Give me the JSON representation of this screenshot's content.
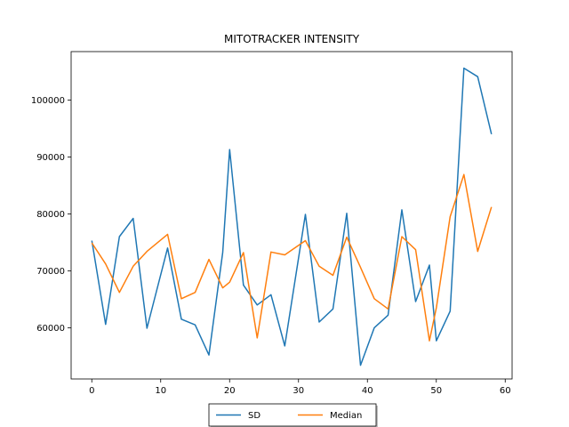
{
  "chart_data": {
    "type": "line",
    "title": "MITOTRACKER INTENSITY",
    "xlabel": "",
    "ylabel": "",
    "xlim": [
      -3,
      61
    ],
    "ylim": [
      51000,
      108500
    ],
    "xticks": [
      0,
      10,
      20,
      30,
      40,
      50,
      60
    ],
    "yticks": [
      60000,
      70000,
      80000,
      90000,
      100000
    ],
    "grid": false,
    "legend_position": "bottom-center",
    "series": [
      {
        "name": "SD",
        "color": "#1f77b4",
        "x": [
          0,
          2,
          4,
          6,
          8,
          11,
          13,
          15,
          17,
          19,
          20,
          22,
          24,
          26,
          28,
          31,
          33,
          35,
          37,
          39,
          41,
          43,
          45,
          47,
          49,
          50,
          52,
          54,
          56,
          58
        ],
        "y": [
          75300,
          60600,
          76000,
          79200,
          59900,
          74000,
          61500,
          60500,
          55200,
          73200,
          91300,
          67500,
          64000,
          65800,
          56800,
          79900,
          61000,
          63300,
          80100,
          53400,
          60000,
          62200,
          80700,
          64600,
          71000,
          57700,
          62900,
          105600,
          104100,
          94000
        ]
      },
      {
        "name": "Median",
        "color": "#ff7f0e",
        "x": [
          0,
          2,
          4,
          6,
          8,
          11,
          13,
          15,
          17,
          19,
          20,
          22,
          24,
          26,
          28,
          31,
          33,
          35,
          37,
          39,
          41,
          43,
          45,
          47,
          49,
          50,
          52,
          54,
          56,
          58
        ],
        "y": [
          74900,
          71200,
          66200,
          70800,
          73400,
          76400,
          65100,
          66200,
          72000,
          67000,
          68000,
          73200,
          58200,
          73300,
          72800,
          75300,
          70800,
          69200,
          75900,
          70600,
          65100,
          63300,
          76000,
          73700,
          57700,
          63500,
          79500,
          86900,
          73400,
          81200
        ]
      }
    ]
  }
}
